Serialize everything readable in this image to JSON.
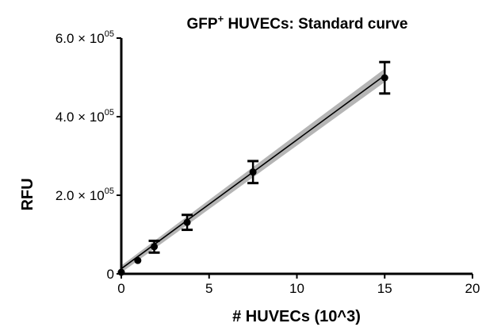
{
  "chart_data": {
    "type": "scatter",
    "title": "GFP",
    "title_superscript": "+",
    "title_rest": " HUVECs: Standard curve",
    "xlabel": "# HUVECs (10^3)",
    "ylabel": "RFU",
    "xlim": [
      0,
      20
    ],
    "ylim": [
      0,
      600000
    ],
    "x_ticks": [
      {
        "value": 0,
        "label": "0"
      },
      {
        "value": 5,
        "label": "5"
      },
      {
        "value": 10,
        "label": "10"
      },
      {
        "value": 15,
        "label": "15"
      },
      {
        "value": 20,
        "label": "20"
      }
    ],
    "y_ticks": [
      {
        "value": 0,
        "mantissa": "0",
        "times": "",
        "base": "",
        "exp": ""
      },
      {
        "value": 200000,
        "mantissa": "2.0",
        "times": " × ",
        "base": "10",
        "exp": "05"
      },
      {
        "value": 400000,
        "mantissa": "4.0",
        "times": " × ",
        "base": "10",
        "exp": "05"
      },
      {
        "value": 600000,
        "mantissa": "6.0",
        "times": " × ",
        "base": "10",
        "exp": "05"
      }
    ],
    "series": [
      {
        "points": [
          {
            "x": 0,
            "y": 4000,
            "err": 0
          },
          {
            "x": 0.94,
            "y": 34000,
            "err": 0
          },
          {
            "x": 1.875,
            "y": 69000,
            "err": 15000
          },
          {
            "x": 3.75,
            "y": 131000,
            "err": 19000
          },
          {
            "x": 7.5,
            "y": 259000,
            "err": 28000
          },
          {
            "x": 15,
            "y": 499000,
            "err": 40000
          }
        ]
      }
    ],
    "fit_line": {
      "x": [
        0,
        15
      ],
      "y": [
        13000,
        505000
      ]
    },
    "confidence_band": {
      "x": [
        0,
        15
      ],
      "y_low": [
        3000,
        488000
      ],
      "y_high": [
        21000,
        522000
      ]
    },
    "grid": false,
    "legend": false,
    "colors": {
      "points": "#000000",
      "fit": "#000000",
      "band": "#b5b5b5",
      "axes": "#000000"
    }
  }
}
